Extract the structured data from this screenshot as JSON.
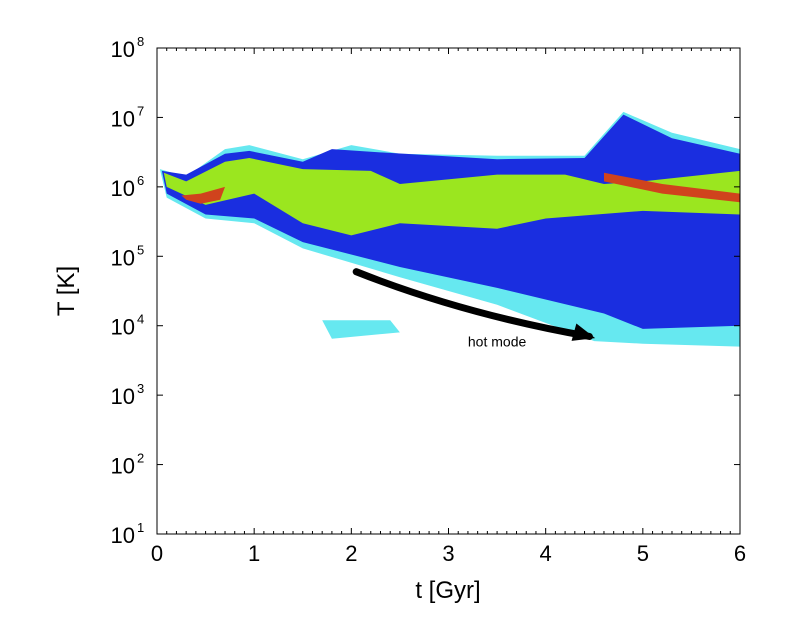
{
  "chart_data": {
    "type": "heatmap",
    "title": "",
    "xlabel": "t [Gyr]",
    "ylabel": "T [K]",
    "xlim": [
      0,
      6
    ],
    "ylim": [
      10,
      100000000
    ],
    "yscale": "log",
    "x_ticks": [
      0,
      1,
      2,
      3,
      4,
      5,
      6
    ],
    "y_ticks": [
      {
        "value": 10,
        "base": "10",
        "exp": "1"
      },
      {
        "value": 100,
        "base": "10",
        "exp": "2"
      },
      {
        "value": 1000,
        "base": "10",
        "exp": "3"
      },
      {
        "value": 10000,
        "base": "10",
        "exp": "4"
      },
      {
        "value": 100000,
        "base": "10",
        "exp": "5"
      },
      {
        "value": 1000000,
        "base": "10",
        "exp": "6"
      },
      {
        "value": 10000000,
        "base": "10",
        "exp": "7"
      },
      {
        "value": 100000000,
        "base": "10",
        "exp": "8"
      }
    ],
    "grid": false,
    "colors": {
      "lowest": "#66e8f0",
      "low": "#1a2ee0",
      "mid": "#9be61f",
      "high": "#d0431d",
      "arrow": "#000000"
    },
    "density_bands": [
      {
        "level": "lowest",
        "points": [
          [
            0.03,
            1800000.0
          ],
          [
            0.3,
            1400000.0
          ],
          [
            0.7,
            3500000.0
          ],
          [
            0.95,
            4000000.0
          ],
          [
            1.5,
            2500000.0
          ],
          [
            2.0,
            4000000.0
          ],
          [
            2.5,
            3000000.0
          ],
          [
            3.5,
            2800000.0
          ],
          [
            4.4,
            2800000.0
          ],
          [
            4.8,
            12000000.0
          ],
          [
            5.3,
            6000000.0
          ],
          [
            6.0,
            3500000.0
          ],
          [
            6.0,
            5000.0
          ],
          [
            5.0,
            5500.0
          ],
          [
            4.5,
            6000.0
          ],
          [
            3.5,
            20000.0
          ],
          [
            2.5,
            50000.0
          ],
          [
            1.5,
            130000.0
          ],
          [
            1.0,
            300000.0
          ],
          [
            0.5,
            350000.0
          ],
          [
            0.1,
            700000.0
          ]
        ]
      },
      {
        "level": "lowest",
        "points": [
          [
            1.7,
            12000.0
          ],
          [
            2.4,
            12000.0
          ],
          [
            2.5,
            8000.0
          ],
          [
            1.8,
            6500.0
          ]
        ]
      },
      {
        "level": "low",
        "points": [
          [
            0.05,
            1700000.0
          ],
          [
            0.3,
            1500000.0
          ],
          [
            0.7,
            3000000.0
          ],
          [
            0.95,
            3300000.0
          ],
          [
            1.5,
            2300000.0
          ],
          [
            1.8,
            3500000.0
          ],
          [
            2.2,
            3200000.0
          ],
          [
            3.5,
            2500000.0
          ],
          [
            4.4,
            2600000.0
          ],
          [
            4.8,
            11000000.0
          ],
          [
            5.3,
            5000000.0
          ],
          [
            6.0,
            3000000.0
          ],
          [
            6.0,
            10000.0
          ],
          [
            5.0,
            9000.0
          ],
          [
            4.6,
            15000.0
          ],
          [
            3.5,
            35000.0
          ],
          [
            2.5,
            70000.0
          ],
          [
            1.5,
            160000.0
          ],
          [
            1.0,
            350000.0
          ],
          [
            0.5,
            400000.0
          ],
          [
            0.1,
            800000.0
          ]
        ]
      },
      {
        "level": "mid",
        "points": [
          [
            0.07,
            1600000.0
          ],
          [
            0.3,
            1200000.0
          ],
          [
            0.7,
            2300000.0
          ],
          [
            0.95,
            2600000.0
          ],
          [
            1.5,
            1800000.0
          ],
          [
            2.2,
            1700000.0
          ],
          [
            2.5,
            1100000.0
          ],
          [
            3.5,
            1500000.0
          ],
          [
            4.2,
            1500000.0
          ],
          [
            4.6,
            1100000.0
          ],
          [
            5.0,
            1200000.0
          ],
          [
            6.0,
            1700000.0
          ],
          [
            6.0,
            400000.0
          ],
          [
            5.0,
            450000.0
          ],
          [
            4.0,
            350000.0
          ],
          [
            3.5,
            250000.0
          ],
          [
            2.5,
            300000.0
          ],
          [
            2.0,
            200000.0
          ],
          [
            1.5,
            300000.0
          ],
          [
            1.0,
            800000.0
          ],
          [
            0.5,
            550000.0
          ],
          [
            0.1,
            1000000.0
          ]
        ]
      },
      {
        "level": "high",
        "points": [
          [
            0.25,
            750000.0
          ],
          [
            0.45,
            800000.0
          ],
          [
            0.7,
            1000000.0
          ],
          [
            0.65,
            650000.0
          ],
          [
            0.45,
            570000.0
          ],
          [
            0.3,
            650000.0
          ]
        ]
      },
      {
        "level": "high",
        "points": [
          [
            4.6,
            1600000.0
          ],
          [
            5.2,
            1100000.0
          ],
          [
            6.0,
            800000.0
          ],
          [
            6.0,
            600000.0
          ],
          [
            5.2,
            800000.0
          ],
          [
            4.6,
            1200000.0
          ]
        ]
      }
    ],
    "annotations": [
      {
        "text": "hot mode",
        "x": 3.5,
        "y": 5000,
        "arrow_from": [
          2.05,
          60000
        ],
        "arrow_to": [
          4.45,
          7000
        ]
      }
    ]
  }
}
